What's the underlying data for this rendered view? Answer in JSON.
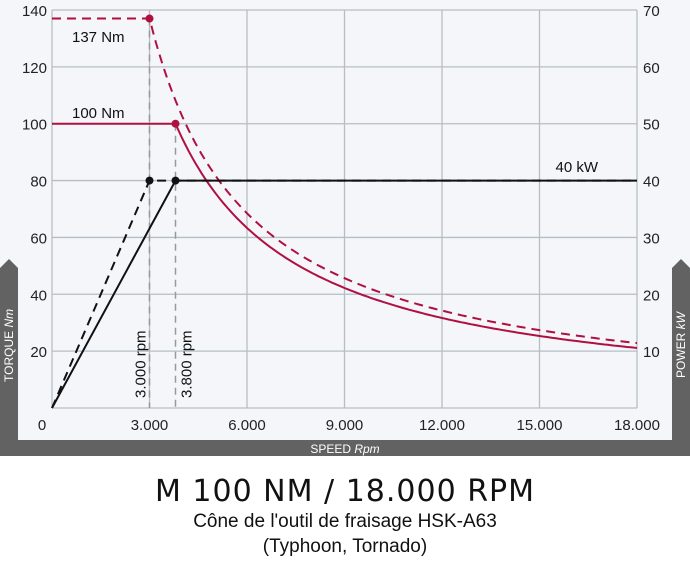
{
  "chart_data": {
    "type": "line",
    "xlabel": "SPEED",
    "xlabel_unit": "Rpm",
    "ylabel_left": "TORQUE",
    "ylabel_left_unit": "Nm",
    "ylabel_right": "POWER",
    "ylabel_right_unit": "kW",
    "xlim": [
      0,
      18000
    ],
    "ylim_left": [
      0,
      140
    ],
    "ylim_right": [
      0,
      70
    ],
    "x_ticks": [
      "0",
      "3.000",
      "6.000",
      "9.000",
      "12.000",
      "15.000",
      "18.000"
    ],
    "y_left_ticks": [
      "20",
      "40",
      "60",
      "80",
      "100",
      "120",
      "140"
    ],
    "y_right_ticks": [
      "10",
      "20",
      "30",
      "40",
      "50",
      "60",
      "70"
    ],
    "grid": true,
    "series": [
      {
        "style": "dashed",
        "color": "#b0103f",
        "axis": "left",
        "constant_until_rpm": 3000,
        "constant_value": 137,
        "then": "constant power hyperbola"
      },
      {
        "style": "solid",
        "color": "#b0103f",
        "axis": "left",
        "constant_until_rpm": 3800,
        "constant_value": 100,
        "then": "constant power hyperbola"
      },
      {
        "style": "dashed",
        "color": "#111111",
        "axis": "right",
        "points": [
          [
            0,
            0
          ],
          [
            3000,
            40
          ],
          [
            18000,
            40
          ]
        ]
      },
      {
        "style": "solid",
        "color": "#111111",
        "axis": "right",
        "points": [
          [
            0,
            0
          ],
          [
            3800,
            40
          ],
          [
            18000,
            40
          ]
        ]
      }
    ],
    "annotations": {
      "torque_peak_dashed": "137 Nm",
      "torque_peak_solid": "100 Nm",
      "power": "40 kW",
      "rpm_1": "3.000 rpm",
      "rpm_2": "3.800 rpm"
    }
  },
  "caption": {
    "title": "M 100 NM / 18.000 RPM",
    "subtitle": "Cône de l'outil de fraisage HSK-A63",
    "models": "(Typhoon, Tornado)"
  }
}
